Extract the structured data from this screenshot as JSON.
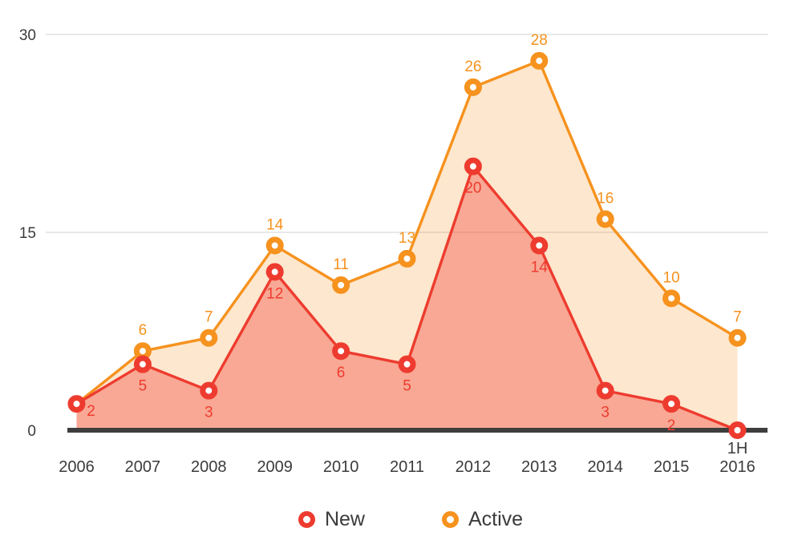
{
  "chart_data": {
    "type": "area",
    "title": "",
    "xlabel": "",
    "ylabel": "",
    "categories": [
      "2006",
      "2007",
      "2008",
      "2009",
      "2010",
      "2011",
      "2012",
      "2013",
      "2014",
      "2015",
      "1H 2016"
    ],
    "series": [
      {
        "name": "Active",
        "color": "#F6921E",
        "fill_opacity": 0.22,
        "values": [
          2,
          6,
          7,
          14,
          11,
          13,
          26,
          28,
          16,
          10,
          7
        ],
        "point_labels": [
          null,
          "6",
          "7",
          "14",
          "11",
          "13",
          "26",
          "28",
          "16",
          "10",
          "7"
        ],
        "label_position": "above",
        "marker_hidden_indices": [
          0
        ]
      },
      {
        "name": "New",
        "color": "#EE3B2F",
        "fill_opacity": 0.36,
        "values": [
          2,
          5,
          3,
          12,
          6,
          5,
          20,
          14,
          3,
          2,
          0
        ],
        "point_labels": [
          "2",
          "5",
          "3",
          "12",
          "6",
          "5",
          "20",
          "14",
          "3",
          "2",
          null
        ],
        "label_position": "below",
        "label_offset_overrides": {
          "0": [
            18,
            15
          ]
        },
        "marker_hidden_indices": []
      }
    ],
    "ylim": [
      0,
      30
    ],
    "yticks": [
      0,
      15,
      30
    ],
    "grid": "horizontal",
    "legend_position": "bottom"
  },
  "legend": {
    "items": [
      {
        "label": "New",
        "color": "#EE3B2F"
      },
      {
        "label": "Active",
        "color": "#F6921E"
      }
    ]
  },
  "colors": {
    "background": "#FFFFFF",
    "axis": "#3E3E3E",
    "gridline": "#D9D9D9",
    "tick_text": "#3B3B3B"
  }
}
